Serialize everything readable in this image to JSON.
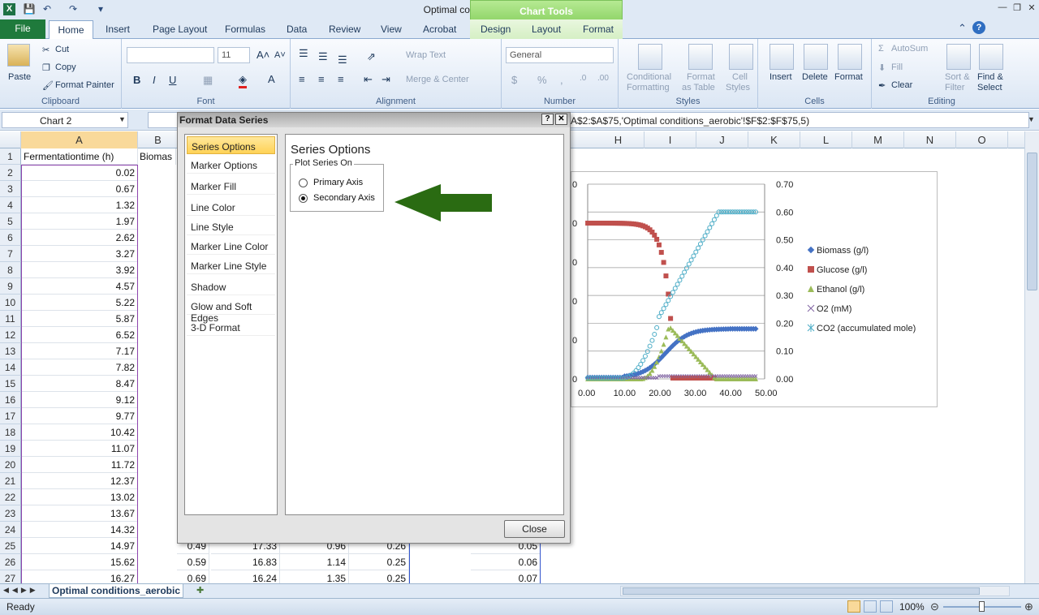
{
  "window": {
    "title": "Optimal conditions_aerobic - Microsoft Excel",
    "chart_tools": "Chart Tools"
  },
  "tabs": [
    "File",
    "Home",
    "Insert",
    "Page Layout",
    "Formulas",
    "Data",
    "Review",
    "View",
    "Acrobat",
    "Design",
    "Layout",
    "Format"
  ],
  "ribbon": {
    "clipboard": {
      "paste": "Paste",
      "cut": "Cut",
      "copy": "Copy",
      "format_painter": "Format Painter",
      "label": "Clipboard"
    },
    "font": {
      "size": "11",
      "label": "Font"
    },
    "alignment": {
      "wrap_text": "Wrap Text",
      "merge_center": "Merge & Center",
      "label": "Alignment"
    },
    "number": {
      "format": "General",
      "label": "Number"
    },
    "styles": {
      "conditional": "Conditional",
      "formatting": "Formatting",
      "format": "Format",
      "as_table": "as Table",
      "cell": "Cell",
      "cell_styles": "Styles",
      "label": "Styles"
    },
    "cells": {
      "insert": "Insert",
      "delete": "Delete",
      "format": "Format",
      "label": "Cells"
    },
    "editing": {
      "autosum": "AutoSum",
      "fill": "Fill",
      "clear": "Clear",
      "sort": "Sort &",
      "filter": "Filter",
      "find": "Find &",
      "select": "Select",
      "label": "Editing"
    }
  },
  "formula_bar": {
    "name_box": "Chart 2",
    "formula": "A$2:$A$75,'Optimal conditions_aerobic'!$F$2:$F$75,5)"
  },
  "sheet": {
    "columns": [
      "A",
      "B",
      "H",
      "I",
      "J",
      "K",
      "L",
      "M",
      "N",
      "O"
    ],
    "header_a": "Fermentationtime (h)",
    "header_b": "Biomas",
    "rows": [
      {
        "r": "1",
        "a": ""
      },
      {
        "r": "2",
        "a": "0.02"
      },
      {
        "r": "3",
        "a": "0.67"
      },
      {
        "r": "4",
        "a": "1.32"
      },
      {
        "r": "5",
        "a": "1.97"
      },
      {
        "r": "6",
        "a": "2.62"
      },
      {
        "r": "7",
        "a": "3.27"
      },
      {
        "r": "8",
        "a": "3.92"
      },
      {
        "r": "9",
        "a": "4.57"
      },
      {
        "r": "10",
        "a": "5.22"
      },
      {
        "r": "11",
        "a": "5.87"
      },
      {
        "r": "12",
        "a": "6.52"
      },
      {
        "r": "13",
        "a": "7.17"
      },
      {
        "r": "14",
        "a": "7.82"
      },
      {
        "r": "15",
        "a": "8.47"
      },
      {
        "r": "16",
        "a": "9.12"
      },
      {
        "r": "17",
        "a": "9.77"
      },
      {
        "r": "18",
        "a": "10.42"
      },
      {
        "r": "19",
        "a": "11.07"
      },
      {
        "r": "20",
        "a": "11.72"
      },
      {
        "r": "21",
        "a": "12.37"
      },
      {
        "r": "22",
        "a": "13.02"
      },
      {
        "r": "23",
        "a": "13.67"
      },
      {
        "r": "24",
        "a": "14.32"
      },
      {
        "r": "25",
        "a": "14.97"
      },
      {
        "r": "26",
        "a": "15.62"
      },
      {
        "r": "27",
        "a": "16.27"
      }
    ],
    "row25": [
      "0.49",
      "17.33",
      "0.96",
      "0.26",
      "0.05"
    ],
    "row26": [
      "0.59",
      "16.83",
      "1.14",
      "0.25",
      "0.06"
    ],
    "row27": [
      "0.69",
      "16.24",
      "1.35",
      "0.25",
      "0.07"
    ]
  },
  "dialog": {
    "title": "Format Data Series",
    "nav": [
      "Series Options",
      "Marker Options",
      "Marker Fill",
      "Line Color",
      "Line Style",
      "Marker Line Color",
      "Marker Line Style",
      "Shadow",
      "Glow and Soft Edges",
      "3-D Format"
    ],
    "panel_title": "Series Options",
    "group_label": "Plot Series On",
    "primary": "Primary Axis",
    "secondary": "Secondary Axis",
    "selected": "secondary",
    "close": "Close"
  },
  "chart_data": {
    "type": "scatter",
    "x_ticks": [
      "0.00",
      "10.00",
      "20.00",
      "30.00",
      "40.00",
      "50.00"
    ],
    "y2_ticks": [
      "0.70",
      "0.60",
      "0.50",
      "0.40",
      "0.30",
      "0.20",
      "0.10",
      "0.00"
    ],
    "y_ticks_partial": [
      "0",
      "0",
      "0",
      "0",
      "0",
      "0"
    ],
    "xlim": [
      0,
      50
    ],
    "y2lim": [
      0,
      0.7
    ],
    "series": [
      {
        "name": "Biomass (g/l)",
        "color": "#4472c4",
        "marker": "diamond"
      },
      {
        "name": "Glucose (g/l)",
        "color": "#c0504d",
        "marker": "square"
      },
      {
        "name": "Ethanol (g/l)",
        "color": "#9bbb59",
        "marker": "triangle"
      },
      {
        "name": "O2 (mM)",
        "color": "#8064a2",
        "marker": "x"
      },
      {
        "name": "CO2 (accumulated mole)",
        "color": "#4bacc6",
        "marker": "star"
      }
    ],
    "legend": "right"
  },
  "sheet_tab": "Optimal conditions_aerobic",
  "status": {
    "ready": "Ready",
    "zoom": "100%"
  }
}
